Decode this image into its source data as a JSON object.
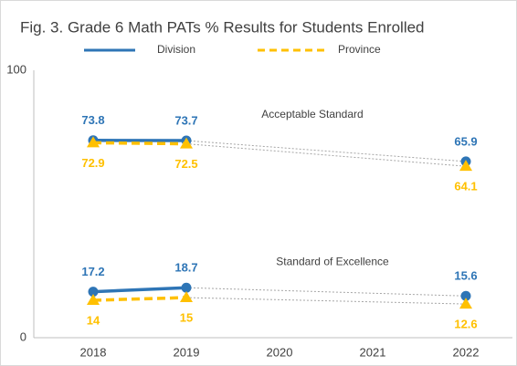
{
  "chart_data": {
    "type": "line",
    "title": "Fig. 3. Grade 6 Math PATs % Results  for Students Enrolled",
    "categories": [
      "2018",
      "2019",
      "2020",
      "2021",
      "2022"
    ],
    "series": [
      {
        "name": "Division",
        "color": "#2e75b6",
        "dashed": false,
        "marker": "circle"
      },
      {
        "name": "Province",
        "color": "#ffc000",
        "dashed": true,
        "marker": "triangle"
      }
    ],
    "groups": [
      {
        "label": "Acceptable Standard",
        "values": [
          [
            73.8,
            73.7,
            null,
            null,
            65.9
          ],
          [
            72.9,
            72.5,
            null,
            null,
            64.1
          ]
        ]
      },
      {
        "label": "Standard of Excellence",
        "values": [
          [
            17.2,
            18.7,
            null,
            null,
            15.6
          ],
          [
            14,
            15,
            null,
            null,
            12.6
          ]
        ]
      }
    ],
    "ylim": [
      0,
      100
    ],
    "yticks": [
      0,
      100
    ],
    "grid": false
  }
}
